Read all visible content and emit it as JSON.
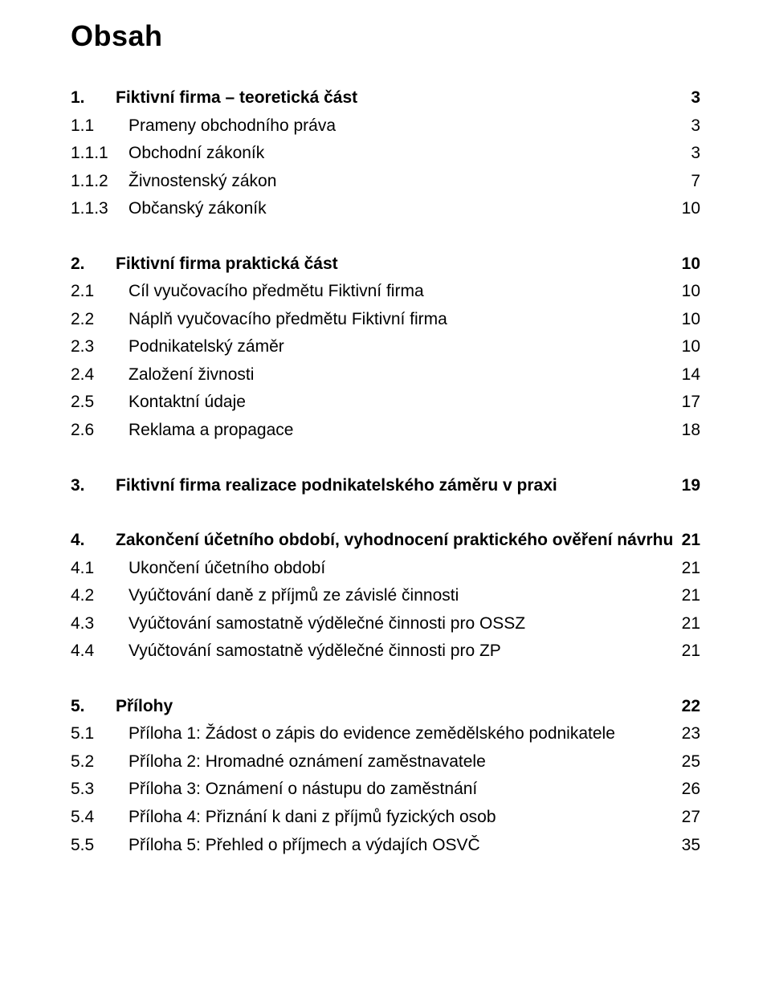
{
  "title": "Obsah",
  "sections": [
    {
      "entries": [
        {
          "num": "1.",
          "label": "Fiktivní firma – teoretická část",
          "page": "3",
          "bold": true
        },
        {
          "num": "1.1",
          "label": "Prameny obchodního práva",
          "page": "3",
          "bold": false
        },
        {
          "num": "1.1.1",
          "label": "Obchodní zákoník",
          "page": "3",
          "bold": false
        },
        {
          "num": "1.1.2",
          "label": "Živnostenský zákon",
          "page": "7",
          "bold": false
        },
        {
          "num": "1.1.3",
          "label": "Občanský zákoník",
          "page": "10",
          "bold": false
        }
      ]
    },
    {
      "entries": [
        {
          "num": "2.",
          "label": "Fiktivní firma praktická část",
          "page": "10",
          "bold": true
        },
        {
          "num": "2.1",
          "label": "Cíl vyučovacího předmětu Fiktivní firma",
          "page": "10",
          "bold": false
        },
        {
          "num": "2.2",
          "label": "Náplň vyučovacího předmětu Fiktivní firma",
          "page": "10",
          "bold": false
        },
        {
          "num": "2.3",
          "label": "Podnikatelský záměr",
          "page": "10",
          "bold": false
        },
        {
          "num": "2.4",
          "label": "Založení živnosti",
          "page": "14",
          "bold": false
        },
        {
          "num": "2.5",
          "label": "Kontaktní údaje",
          "page": "17",
          "bold": false
        },
        {
          "num": "2.6",
          "label": "Reklama a propagace",
          "page": "18",
          "bold": false
        }
      ]
    },
    {
      "entries": [
        {
          "num": "3.",
          "label": "Fiktivní firma realizace podnikatelského záměru v praxi",
          "page": "19",
          "bold": true
        }
      ]
    },
    {
      "entries": [
        {
          "num": "4.",
          "label": "Zakončení účetního období, vyhodnocení praktického ověření návrhu",
          "page": "21",
          "bold": true
        },
        {
          "num": "4.1",
          "label": "Ukončení účetního období",
          "page": "21",
          "bold": false
        },
        {
          "num": "4.2",
          "label": "Vyúčtování daně z příjmů ze závislé činnosti",
          "page": "21",
          "bold": false
        },
        {
          "num": "4.3",
          "label": "Vyúčtování samostatně výdělečné činnosti pro OSSZ",
          "page": "21",
          "bold": false
        },
        {
          "num": "4.4",
          "label": "Vyúčtování samostatně výdělečné činnosti pro ZP",
          "page": "21",
          "bold": false
        }
      ]
    },
    {
      "entries": [
        {
          "num": "5.",
          "label": "Přílohy",
          "page": "22",
          "bold": true
        },
        {
          "num": "5.1",
          "label": "Příloha 1: Žádost o zápis do evidence zemědělského podnikatele",
          "page": "23",
          "bold": false
        },
        {
          "num": "5.2",
          "label": "Příloha 2: Hromadné oznámení zaměstnavatele",
          "page": "25",
          "bold": false
        },
        {
          "num": "5.3",
          "label": "Příloha 3: Oznámení o nástupu do zaměstnání",
          "page": "26",
          "bold": false
        },
        {
          "num": "5.4",
          "label": "Příloha 4: Přiznání k dani z příjmů fyzických osob",
          "page": "27",
          "bold": false
        },
        {
          "num": "5.5",
          "label": "Příloha 5: Přehled o příjmech a výdajích OSVČ",
          "page": "35",
          "bold": false
        }
      ]
    }
  ]
}
